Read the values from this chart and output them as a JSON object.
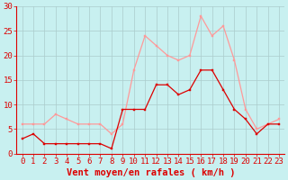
{
  "x": [
    0,
    1,
    2,
    3,
    4,
    5,
    6,
    7,
    8,
    9,
    10,
    11,
    12,
    13,
    14,
    15,
    16,
    17,
    18,
    19,
    20,
    21,
    22,
    23
  ],
  "mean_wind": [
    3,
    4,
    2,
    2,
    2,
    2,
    2,
    2,
    1,
    9,
    9,
    9,
    14,
    14,
    12,
    13,
    17,
    17,
    13,
    9,
    7,
    4,
    6,
    6
  ],
  "gust_wind": [
    6,
    6,
    6,
    8,
    7,
    6,
    6,
    6,
    4,
    6,
    17,
    24,
    22,
    20,
    19,
    20,
    28,
    24,
    26,
    19,
    9,
    5,
    6,
    7
  ],
  "mean_color": "#dd0000",
  "gust_color": "#ff9999",
  "bg_color": "#c8f0f0",
  "grid_color": "#aacccc",
  "xlabel": "Vent moyen/en rafales ( km/h )",
  "ylim": [
    0,
    30
  ],
  "yticks": [
    0,
    5,
    10,
    15,
    20,
    25,
    30
  ],
  "tick_fontsize": 6.5,
  "xlabel_fontsize": 7.5,
  "marker_size": 2.0,
  "linewidth": 0.9
}
